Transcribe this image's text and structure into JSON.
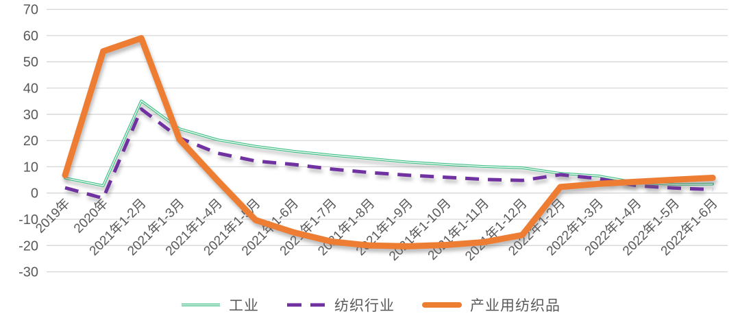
{
  "chart_data": {
    "type": "line",
    "title": "",
    "xlabel": "",
    "ylabel": "",
    "categories": [
      "2019年",
      "2020年",
      "2021年1-2月",
      "2021年1-3月",
      "2021年1-4月",
      "2021年1-5月",
      "2021年1-6月",
      "2021年1-7月",
      "2021年1-8月",
      "2021年1-9月",
      "2021年1-10月",
      "2021年1-11月",
      "2021年1-12月",
      "2022年1-2月",
      "2022年1-3月",
      "2022年1-4月",
      "2022年1-5月",
      "2022年1-6月"
    ],
    "series": [
      {
        "name": "工业",
        "color": "#3fbe85",
        "line_style": "thin-double",
        "width": 3.8,
        "values": [
          5.7,
          2.8,
          35.1,
          24.5,
          20.3,
          17.8,
          15.9,
          14.4,
          13.1,
          11.8,
          10.9,
          10.1,
          9.6,
          7.5,
          6.5,
          4.0,
          3.3,
          3.4
        ]
      },
      {
        "name": "纺织行业",
        "color": "#7030a0",
        "line_style": "dashed",
        "width": 5,
        "values": [
          2.0,
          -2.0,
          32.0,
          21.0,
          15.2,
          12.2,
          10.9,
          9.1,
          7.8,
          6.8,
          6.0,
          5.2,
          4.8,
          7.0,
          5.5,
          2.8,
          1.9,
          1.3
        ]
      },
      {
        "name": "产业用纺织品",
        "color": "#ed7d31",
        "line_style": "solid-thick",
        "width": 9,
        "values": [
          6.8,
          54.0,
          59.0,
          20.5,
          4.8,
          -10.3,
          -15.0,
          -18.5,
          -20.0,
          -20.3,
          -19.8,
          -18.7,
          -16.0,
          2.3,
          3.5,
          4.3,
          5.1,
          5.8
        ]
      }
    ],
    "ylim": [
      -30,
      70
    ],
    "yticks": [
      70,
      60,
      50,
      40,
      30,
      20,
      10,
      0,
      -10,
      -20,
      -30
    ],
    "grid": true,
    "gridline_color": "#d6d6d6",
    "tick_label_color": "#595959",
    "legend_position": "bottom",
    "background": "#ffffff",
    "x_label_rotation_deg": 45
  }
}
